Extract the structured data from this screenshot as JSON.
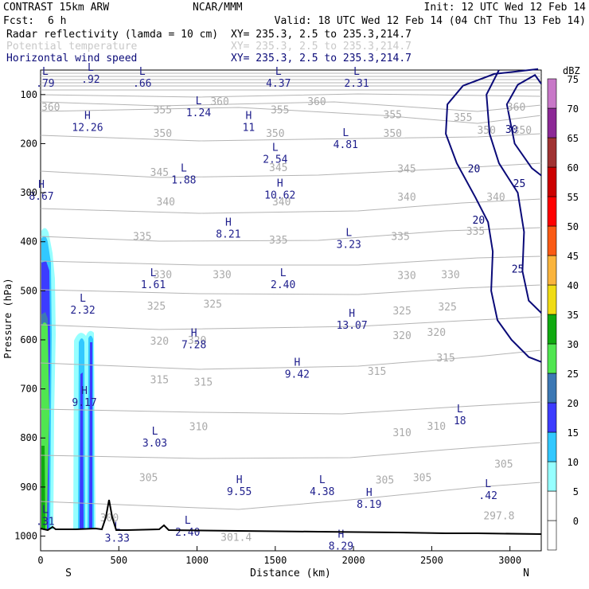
{
  "header": {
    "line1_left": "CONTRAST 15km ARW",
    "line1_mid": "NCAR/MMM",
    "line1_right": "Init: 12 UTC Wed 12 Feb 14",
    "fcst_label": "Fcst:",
    "fcst_value": "6 h",
    "valid": "Valid: 18 UTC Wed 12 Feb 14 (04 ChT Thu 13 Feb 14)",
    "fields": [
      {
        "name": "Radar reflectivity (lamda = 10 cm)",
        "xy": "XY= 235.3,  2.5 to 235.3,214.7",
        "color": "#000000"
      },
      {
        "name": "Potential temperature",
        "xy": "XY= 235.3,  2.5 to 235.3,214.7",
        "color": "#c8c8c8"
      },
      {
        "name": "Horizontal wind speed",
        "xy": "XY= 235.3,  2.5 to 235.3,214.7",
        "color": "#0a0a78"
      }
    ]
  },
  "chart_data": {
    "type": "cross-section",
    "xlabel": "Distance (km)",
    "ylabel": "Pressure (hPa)",
    "xlim": [
      0,
      3200
    ],
    "ylim": [
      1030,
      50
    ],
    "x_ticks": [
      0,
      500,
      1000,
      1500,
      2000,
      2500,
      3000
    ],
    "y_ticks": [
      100,
      200,
      300,
      400,
      500,
      600,
      700,
      800,
      900,
      1000
    ],
    "x_end_labels": {
      "left": "S",
      "right": "N"
    },
    "colorbar": {
      "unit": "dBZ",
      "levels": [
        0,
        5,
        10,
        15,
        20,
        25,
        30,
        35,
        40,
        45,
        50,
        55,
        60,
        65,
        70,
        75
      ],
      "colors": [
        "#ffffff",
        "#ffffff",
        "#96ffff",
        "#32c8ff",
        "#3c3cff",
        "#3c78b4",
        "#50e650",
        "#10aa10",
        "#f0dc14",
        "#fab43c",
        "#fa5a14",
        "#ff0000",
        "#cc0000",
        "#a03232",
        "#8c2896",
        "#c878c8"
      ]
    },
    "theta_labels": [
      {
        "text": "360",
        "x": 65,
        "p": 125
      },
      {
        "text": "360",
        "x": 1145,
        "p": 113
      },
      {
        "text": "360",
        "x": 1765,
        "p": 113
      },
      {
        "text": "360",
        "x": 3040,
        "p": 125
      },
      {
        "text": "355",
        "x": 780,
        "p": 130
      },
      {
        "text": "355",
        "x": 1530,
        "p": 130
      },
      {
        "text": "355",
        "x": 2250,
        "p": 140
      },
      {
        "text": "355",
        "x": 2700,
        "p": 146
      },
      {
        "text": "350",
        "x": 780,
        "p": 178
      },
      {
        "text": "350",
        "x": 1500,
        "p": 178
      },
      {
        "text": "350",
        "x": 2250,
        "p": 178
      },
      {
        "text": "350",
        "x": 2850,
        "p": 172
      },
      {
        "text": "350",
        "x": 3080,
        "p": 172
      },
      {
        "text": "345",
        "x": 760,
        "p": 258
      },
      {
        "text": "345",
        "x": 1520,
        "p": 248
      },
      {
        "text": "345",
        "x": 2340,
        "p": 250
      },
      {
        "text": "340",
        "x": 800,
        "p": 318
      },
      {
        "text": "340",
        "x": 1540,
        "p": 318
      },
      {
        "text": "340",
        "x": 2340,
        "p": 308
      },
      {
        "text": "340",
        "x": 2910,
        "p": 308
      },
      {
        "text": "335",
        "x": 650,
        "p": 388
      },
      {
        "text": "335",
        "x": 1520,
        "p": 396
      },
      {
        "text": "335",
        "x": 2300,
        "p": 388
      },
      {
        "text": "335",
        "x": 2780,
        "p": 378
      },
      {
        "text": "330",
        "x": 780,
        "p": 466
      },
      {
        "text": "330",
        "x": 1160,
        "p": 466
      },
      {
        "text": "330",
        "x": 2340,
        "p": 468
      },
      {
        "text": "330",
        "x": 2620,
        "p": 466
      },
      {
        "text": "325",
        "x": 740,
        "p": 530
      },
      {
        "text": "325",
        "x": 1100,
        "p": 526
      },
      {
        "text": "325",
        "x": 2310,
        "p": 540
      },
      {
        "text": "325",
        "x": 2600,
        "p": 532
      },
      {
        "text": "320",
        "x": 760,
        "p": 602
      },
      {
        "text": "320",
        "x": 1000,
        "p": 600
      },
      {
        "text": "320",
        "x": 2310,
        "p": 590
      },
      {
        "text": "320",
        "x": 2530,
        "p": 584
      },
      {
        "text": "315",
        "x": 760,
        "p": 680
      },
      {
        "text": "315",
        "x": 1040,
        "p": 685
      },
      {
        "text": "315",
        "x": 2150,
        "p": 663
      },
      {
        "text": "315",
        "x": 2590,
        "p": 636
      },
      {
        "text": "310",
        "x": 1010,
        "p": 776
      },
      {
        "text": "310",
        "x": 2310,
        "p": 788
      },
      {
        "text": "310",
        "x": 2530,
        "p": 775
      },
      {
        "text": "305",
        "x": 690,
        "p": 880
      },
      {
        "text": "305",
        "x": 2200,
        "p": 885
      },
      {
        "text": "305",
        "x": 2440,
        "p": 880
      },
      {
        "text": "305",
        "x": 2960,
        "p": 852
      },
      {
        "text": "300",
        "x": 440,
        "p": 962
      },
      {
        "text": "301.4",
        "x": 1250,
        "p": 1002
      },
      {
        "text": "297.8",
        "x": 2930,
        "p": 958
      }
    ],
    "wind_labels": [
      {
        "text": "30",
        "x": 3010,
        "p": 170
      },
      {
        "text": "20",
        "x": 2770,
        "p": 250
      },
      {
        "text": "25",
        "x": 3060,
        "p": 280
      },
      {
        "text": "20",
        "x": 2800,
        "p": 355
      },
      {
        "text": "25",
        "x": 3050,
        "p": 455
      }
    ],
    "wind_contours": [
      {
        "value": 20,
        "points": [
          [
            3180,
            48
          ],
          [
            2900,
            58
          ],
          [
            2700,
            82
          ],
          [
            2600,
            120
          ],
          [
            2590,
            180
          ],
          [
            2660,
            240
          ],
          [
            2780,
            310
          ],
          [
            2860,
            360
          ],
          [
            2890,
            420
          ],
          [
            2880,
            500
          ],
          [
            2920,
            560
          ],
          [
            3010,
            600
          ],
          [
            3120,
            635
          ],
          [
            3200,
            645
          ]
        ]
      },
      {
        "value": 25,
        "points": [
          [
            2930,
            50
          ],
          [
            2850,
            100
          ],
          [
            2870,
            180
          ],
          [
            2930,
            240
          ],
          [
            3050,
            300
          ],
          [
            3090,
            380
          ],
          [
            3080,
            460
          ],
          [
            3120,
            520
          ],
          [
            3200,
            545
          ]
        ]
      },
      {
        "value": 30,
        "points": [
          [
            3200,
            78
          ],
          [
            3160,
            60
          ],
          [
            3050,
            80
          ],
          [
            2980,
            120
          ],
          [
            3030,
            200
          ],
          [
            3140,
            250
          ],
          [
            3200,
            265
          ]
        ]
      }
    ],
    "pressure_extrema": [
      {
        "type": "L",
        "value": ".79",
        "x": 30,
        "p": 60
      },
      {
        "type": "L",
        "value": ".92",
        "x": 320,
        "p": 52
      },
      {
        "type": "L",
        "value": ".66",
        "x": 650,
        "p": 60
      },
      {
        "type": "L",
        "value": "4.37",
        "x": 1520,
        "p": 60
      },
      {
        "type": "L",
        "value": "2.31",
        "x": 2020,
        "p": 60
      },
      {
        "type": "L",
        "value": "1.24",
        "x": 1010,
        "p": 120
      },
      {
        "type": "H",
        "value": "12.26",
        "x": 300,
        "p": 150
      },
      {
        "type": "H",
        "value": "11",
        "x": 1330,
        "p": 150
      },
      {
        "type": "L",
        "value": "4.81",
        "x": 1950,
        "p": 185
      },
      {
        "type": "L",
        "value": "2.54",
        "x": 1500,
        "p": 215
      },
      {
        "type": "L",
        "value": "1.88",
        "x": 915,
        "p": 257
      },
      {
        "type": "H",
        "value": "8.67",
        "x": 5,
        "p": 290
      },
      {
        "type": "H",
        "value": "10.62",
        "x": 1530,
        "p": 288
      },
      {
        "type": "H",
        "value": "8.21",
        "x": 1200,
        "p": 367
      },
      {
        "type": "L",
        "value": "3.23",
        "x": 1970,
        "p": 388
      },
      {
        "type": "L",
        "value": "1.61",
        "x": 720,
        "p": 470
      },
      {
        "type": "L",
        "value": "2.40",
        "x": 1550,
        "p": 470
      },
      {
        "type": "L",
        "value": "2.32",
        "x": 270,
        "p": 522
      },
      {
        "type": "H",
        "value": "13.07",
        "x": 1990,
        "p": 553
      },
      {
        "type": "H",
        "value": "7.28",
        "x": 980,
        "p": 593
      },
      {
        "type": "H",
        "value": "9.42",
        "x": 1640,
        "p": 653
      },
      {
        "type": "H",
        "value": "9.17",
        "x": 280,
        "p": 710
      },
      {
        "type": "L",
        "value": "18",
        "x": 2680,
        "p": 748
      },
      {
        "type": "L",
        "value": "3.03",
        "x": 730,
        "p": 793
      },
      {
        "type": "H",
        "value": "9.55",
        "x": 1270,
        "p": 892
      },
      {
        "type": "L",
        "value": "4.38",
        "x": 1800,
        "p": 892
      },
      {
        "type": "L",
        "value": ".42",
        "x": 2860,
        "p": 900
      },
      {
        "type": "H",
        "value": "8.19",
        "x": 2100,
        "p": 918
      },
      {
        "type": "L",
        "value": ".31",
        "x": 30,
        "p": 953
      },
      {
        "type": "L",
        "value": "3.33",
        "x": 490,
        "p": 987
      },
      {
        "type": "L",
        "value": "2.40",
        "x": 940,
        "p": 975
      },
      {
        "type": "H",
        "value": "8.29",
        "x": 1920,
        "p": 1003
      }
    ]
  }
}
